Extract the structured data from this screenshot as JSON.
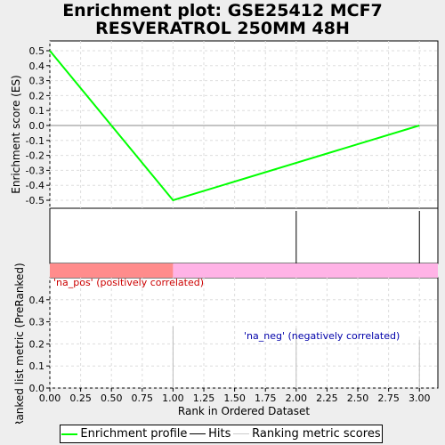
{
  "title_line1": "Enrichment plot: GSE25412 MCF7",
  "title_line2": "RESVERATROL 250MM 48H",
  "chart_data": {
    "type": "line",
    "xlabel": "Rank in Ordered Dataset",
    "xlim": [
      0,
      3.15
    ],
    "x_ticks": [
      0,
      0.25,
      0.5,
      0.75,
      1,
      1.25,
      1.5,
      1.75,
      2,
      2.25,
      2.5,
      2.75,
      3
    ],
    "x_tick_labels": [
      "0.00",
      "0.25",
      "0.50",
      "0.75",
      "1.00",
      "1.25",
      "1.50",
      "1.75",
      "2.00",
      "2.25",
      "2.50",
      "2.75",
      "3.00"
    ],
    "top_panel": {
      "ylabel": "Enrichment score (ES)",
      "ylim": [
        -0.55,
        0.55
      ],
      "y_ticks": [
        0.5,
        0.4,
        0.3,
        0.2,
        0.1,
        0.0,
        -0.1,
        -0.2,
        -0.3,
        -0.4,
        -0.5
      ],
      "y_tick_labels": [
        "0.5",
        "0.4",
        "0.3",
        "0.2",
        "0.1",
        "0.0",
        "-0.1",
        "-0.2",
        "-0.3",
        "-0.4",
        "-0.5"
      ],
      "grid": true,
      "series": [
        {
          "name": "Enrichment profile",
          "color": "#00ff00",
          "x": [
            0,
            1,
            3
          ],
          "y": [
            0.5,
            -0.5,
            0.0
          ]
        }
      ]
    },
    "hits_panel": {
      "hits_x": [
        0,
        2,
        3
      ],
      "color": "#000000"
    },
    "correlation_bar": {
      "segments": [
        {
          "from": 0,
          "to": 1,
          "color": "#ff8c8c"
        },
        {
          "from": 1,
          "to": 3.15,
          "color": "#ffb3e6"
        }
      ]
    },
    "bottom_panel": {
      "ylabel": "Ranked list metric (PreRanked)",
      "ylim": [
        0,
        0.5
      ],
      "y_ticks": [
        0.0,
        0.1,
        0.2,
        0.3,
        0.4
      ],
      "y_tick_labels": [
        "0.0",
        "0.1",
        "0.2",
        "0.3",
        "0.4"
      ],
      "grid": true,
      "metric_x": [
        1,
        2,
        3
      ],
      "metric_y": [
        0.28,
        0.27,
        0.22
      ],
      "metric_color": "#bbbbbb",
      "annotations": [
        {
          "text": "'na_pos' (positively correlated)",
          "color": "#cc0000"
        },
        {
          "text": "'na_neg' (negatively correlated)",
          "color": "#0000aa"
        }
      ]
    },
    "legend": [
      {
        "label": "Enrichment profile",
        "color": "#00ff00"
      },
      {
        "label": "Hits",
        "color": "#000000"
      },
      {
        "label": "Ranking metric scores",
        "color": "#cccccc"
      }
    ]
  }
}
